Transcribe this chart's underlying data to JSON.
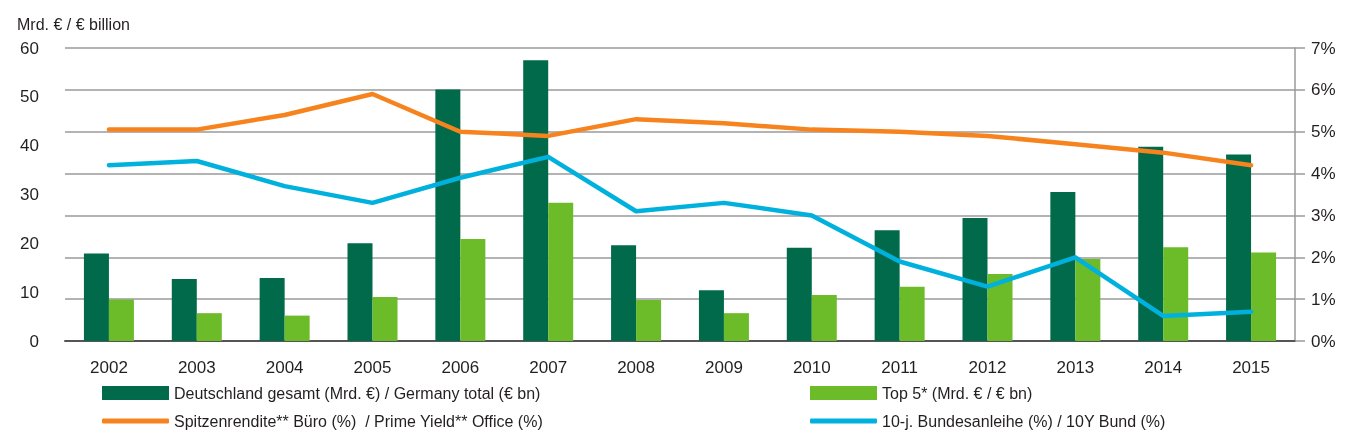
{
  "chart_data": {
    "type": "bar",
    "ylabel": "Mrd. € / € billion",
    "categories": [
      "2002",
      "2003",
      "2004",
      "2005",
      "2006",
      "2007",
      "2008",
      "2009",
      "2010",
      "2011",
      "2012",
      "2013",
      "2014",
      "2015"
    ],
    "series": [
      {
        "name": "Deutschland gesamt (Mrd. €) / Germany total (€ bn)",
        "color": "#006a4a",
        "values": [
          17.9,
          12.7,
          12.9,
          20.0,
          51.5,
          57.5,
          19.6,
          10.4,
          19.1,
          22.7,
          25.2,
          30.5,
          39.8,
          38.2
        ]
      },
      {
        "name": "Top 5* (Mrd. € / € bn)",
        "color": "#6bbc28",
        "values": [
          8.5,
          5.7,
          5.2,
          9.0,
          20.9,
          28.3,
          8.4,
          5.7,
          9.4,
          11.1,
          13.7,
          16.8,
          19.2,
          18.1
        ]
      },
      {
        "name": "Spitzenrendite** Büro (%)  / Prime Yield** Office (%)",
        "color": "#f7831f",
        "type": "line",
        "axis": "y2",
        "values": [
          5.05,
          5.05,
          5.4,
          5.9,
          5.0,
          4.9,
          5.3,
          5.2,
          5.05,
          5.0,
          4.9,
          4.7,
          4.5,
          4.2
        ]
      },
      {
        "name": "10-j. Bundesanleihe (%) / 10Y Bund (%)",
        "color": "#00b1de",
        "type": "line",
        "axis": "y2",
        "values": [
          4.2,
          4.3,
          3.7,
          3.3,
          3.9,
          4.4,
          3.1,
          3.3,
          3.0,
          1.9,
          1.3,
          2.0,
          0.6,
          0.7
        ]
      }
    ],
    "ylim": [
      0,
      60
    ],
    "yticks": [
      0,
      10,
      20,
      30,
      40,
      50,
      60
    ],
    "y2lim": [
      0,
      7
    ],
    "y2ticks": [
      {
        "value": 0,
        "label": "0%"
      },
      {
        "value": 1,
        "label": "1%"
      },
      {
        "value": 2,
        "label": "2%"
      },
      {
        "value": 3,
        "label": "3%"
      },
      {
        "value": 4,
        "label": "4%"
      },
      {
        "value": 5,
        "label": "5%"
      },
      {
        "value": 6,
        "label": "6%"
      },
      {
        "value": 7,
        "label": "7%"
      }
    ],
    "grid": "y",
    "legend": "bottom",
    "marker": "none",
    "line_style": "solid"
  }
}
